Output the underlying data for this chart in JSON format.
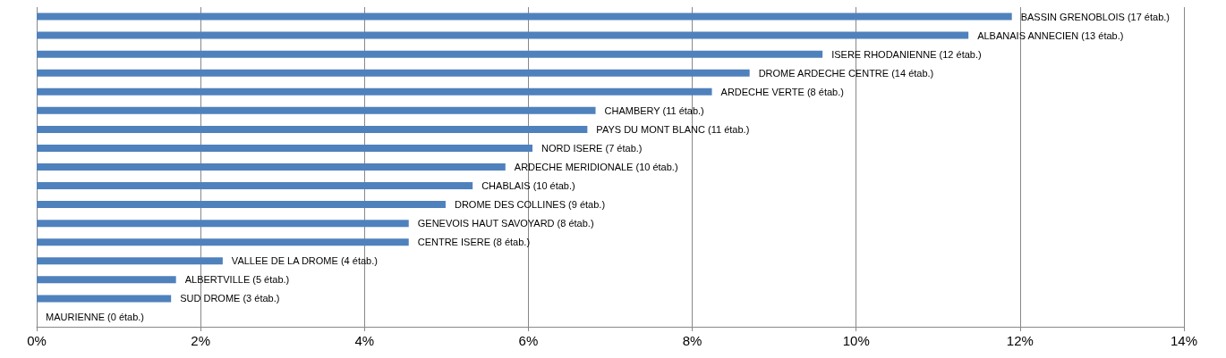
{
  "chart_data": {
    "type": "bar",
    "orientation": "horizontal",
    "categories": [
      "BASSIN GRENOBLOIS (17 étab.)",
      "ALBANAIS ANNECIEN (13 étab.)",
      "ISERE RHODANIENNE (12 étab.)",
      "DROME ARDECHE CENTRE (14 étab.)",
      "ARDECHE VERTE (8 étab.)",
      "CHAMBERY (11 étab.)",
      "PAYS DU MONT BLANC (11 étab.)",
      "NORD ISERE (7 étab.)",
      "ARDECHE MERIDIONALE (10 étab.)",
      "CHABLAIS (10 étab.)",
      "DROME DES COLLINES (9 étab.)",
      "GENEVOIS HAUT SAVOYARD (8 étab.)",
      "CENTRE ISERE (8 étab.)",
      "VALLEE DE LA DROME (4 étab.)",
      "ALBERTVILLE (5 étab.)",
      "SUD DROME (3 étab.)",
      "MAURIENNE (0 étab.)"
    ],
    "values": [
      11.9,
      11.37,
      9.59,
      8.7,
      8.24,
      6.82,
      6.72,
      6.05,
      5.72,
      5.32,
      4.99,
      4.54,
      4.54,
      2.27,
      1.7,
      1.64,
      0
    ],
    "color": "#4f81bd",
    "xlim": [
      0,
      14
    ],
    "xticks": [
      {
        "value": 0,
        "label": "0%"
      },
      {
        "value": 2,
        "label": "2%"
      },
      {
        "value": 4,
        "label": "4%"
      },
      {
        "value": 6,
        "label": "6%"
      },
      {
        "value": 8,
        "label": "8%"
      },
      {
        "value": 10,
        "label": "10%"
      },
      {
        "value": 12,
        "label": "12%"
      },
      {
        "value": 14,
        "label": "14%"
      }
    ],
    "grid": "x",
    "tick_labels": "x"
  }
}
